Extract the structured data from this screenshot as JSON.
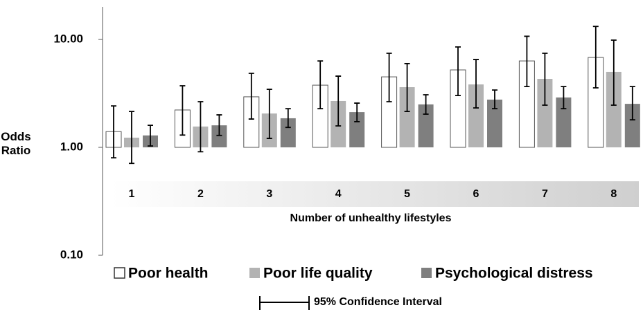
{
  "chart_data": {
    "type": "bar",
    "ylabel": "Odds Ratio",
    "xlabel": "Number of unhealthy lifestyles",
    "categories": [
      "1",
      "2",
      "3",
      "4",
      "5",
      "6",
      "7",
      "8"
    ],
    "log_scale": true,
    "ylim": [
      0.1,
      20
    ],
    "yticks": [
      {
        "value": 10,
        "label": "10.00"
      },
      {
        "value": 1,
        "label": "1.00"
      },
      {
        "value": 0.1,
        "label": "0.10"
      }
    ],
    "baseline": 1,
    "series": [
      {
        "name": "Poor health",
        "color": "#ffffff",
        "values": [
          1.4,
          2.22,
          2.94,
          3.77,
          4.5,
          5.22,
          6.32,
          6.81
        ],
        "lower": [
          0.8,
          1.3,
          1.83,
          2.28,
          2.65,
          3.02,
          3.66,
          3.56
        ],
        "upper": [
          2.42,
          3.72,
          4.85,
          6.32,
          7.44,
          8.52,
          10.7,
          13.2
        ]
      },
      {
        "name": "Poor life quality",
        "color": "#b3b3b3",
        "values": [
          1.23,
          1.56,
          2.06,
          2.69,
          3.61,
          3.83,
          4.31,
          5.0
        ],
        "lower": [
          0.71,
          0.91,
          1.21,
          1.58,
          2.15,
          2.32,
          2.46,
          2.46
        ],
        "upper": [
          2.15,
          2.65,
          3.45,
          4.57,
          5.97,
          6.51,
          7.44,
          9.85
        ]
      },
      {
        "name": "Psychological distress",
        "color": "#7f7f7f",
        "values": [
          1.29,
          1.6,
          1.86,
          2.12,
          2.5,
          2.77,
          2.9,
          2.53
        ],
        "lower": [
          1.03,
          1.29,
          1.53,
          1.73,
          2.03,
          2.28,
          2.28,
          1.8
        ],
        "upper": [
          1.6,
          2.0,
          2.28,
          2.57,
          3.07,
          3.4,
          3.66,
          3.66
        ]
      }
    ],
    "ci_legend": "95% Confidence Interval"
  }
}
